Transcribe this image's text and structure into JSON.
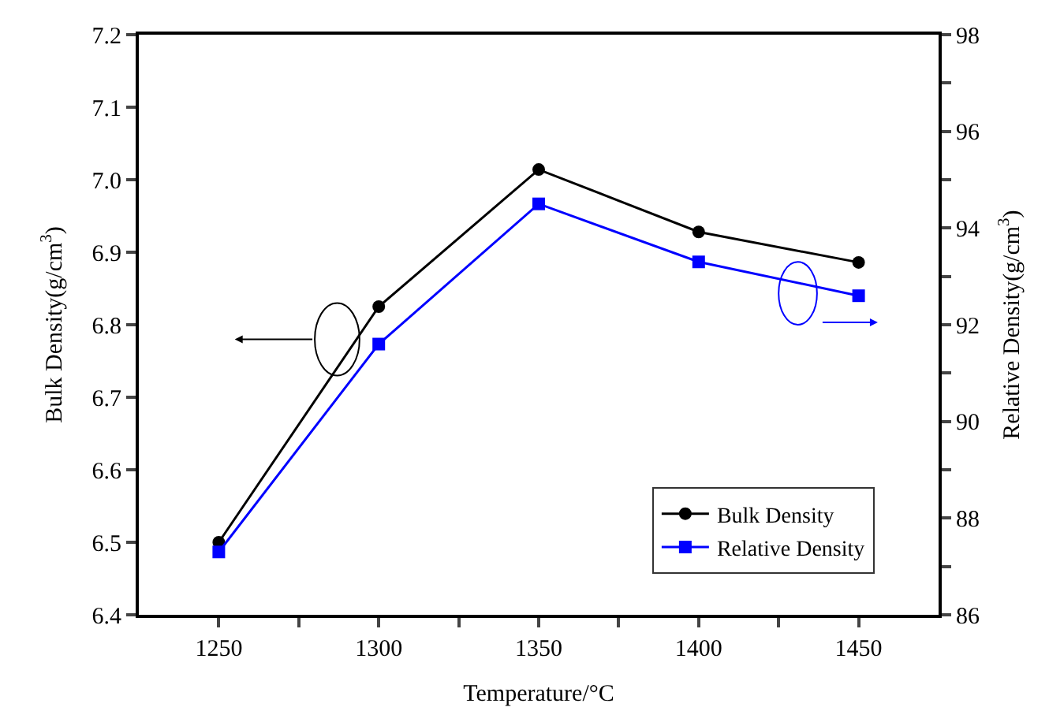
{
  "chart_data": {
    "type": "line",
    "xlabel": "Temperature/°C",
    "ylabel": "Bulk Density(g/cm$^{3}$)",
    "y2label": "Relative Density(g/cm$^{3}$)",
    "x": [
      1250,
      1300,
      1350,
      1400,
      1450
    ],
    "series": [
      {
        "name": "Bulk Density",
        "color": "#000000",
        "marker": "circle",
        "values": [
          6.5,
          6.825,
          7.014,
          6.928,
          6.886
        ]
      },
      {
        "name": "Relative Density",
        "color": "#0000ff",
        "marker": "square",
        "axis": "y2",
        "values": [
          87.3,
          91.6,
          94.5,
          93.3,
          92.6
        ]
      }
    ],
    "xlim": [
      1225,
      1475
    ],
    "xticks": [
      1250,
      {
        "value": 1275,
        "label": null
      },
      1300,
      {
        "value": 1325,
        "label": null
      },
      1350,
      {
        "value": 1375,
        "label": null
      },
      1400,
      {
        "value": 1425,
        "label": null
      },
      1450
    ],
    "ylim": [
      6.4,
      7.2
    ],
    "yticks": [
      6.4,
      6.5,
      6.6,
      6.7,
      6.8,
      6.9,
      {
        "value": 7,
        "label": "7.0"
      },
      7.1,
      7.2
    ],
    "y2lim": [
      86,
      98
    ],
    "y2ticks": [
      86,
      {
        "value": 87,
        "label": null
      },
      88,
      {
        "value": 89,
        "label": null
      },
      90,
      {
        "value": 91,
        "label": null
      },
      92,
      {
        "value": 93,
        "label": null
      },
      94,
      {
        "value": 95,
        "label": null
      },
      96,
      {
        "value": 97,
        "label": null
      },
      98
    ],
    "legend": "bottom right",
    "line_style": "solid"
  }
}
